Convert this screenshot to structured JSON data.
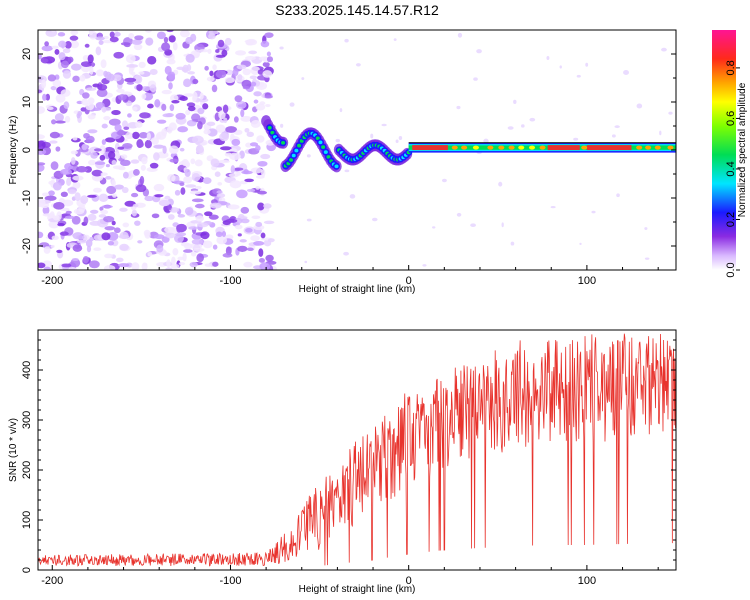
{
  "title": "S233.2025.145.14.57.R12",
  "chart_data": [
    {
      "type": "heatmap",
      "title": "S233.2025.145.14.57.R12",
      "xlabel": "Height of straight line (km)",
      "ylabel": "Frequency (Hz)",
      "xlim": [
        -208,
        150
      ],
      "ylim": [
        -25,
        25
      ],
      "xticks": [
        -200,
        -100,
        0,
        100
      ],
      "yticks": [
        -20,
        -10,
        0,
        10,
        20
      ],
      "colorbar": {
        "label": "Normalized spectral amplitude",
        "range": [
          0.0,
          0.95
        ],
        "ticks": [
          "0.0",
          "0.2",
          "0.4",
          "0.6",
          "0.8"
        ],
        "colormap": "rainbow (purple-blue-cyan-green-yellow-orange-red-pink)"
      },
      "features": [
        {
          "region": "x < -75 km",
          "description": "noise, low amplitude speckle across all frequencies",
          "amplitude_range": [
            0.0,
            0.1
          ]
        },
        {
          "region": "-75 to 0 km",
          "description": "band near 0 Hz with wander up to ~5 Hz",
          "amplitude_range": [
            0.1,
            0.5
          ]
        },
        {
          "region": "0 to 150 km",
          "description": "narrow strong band at ~0.5 Hz",
          "amplitude_range": [
            0.3,
            0.95
          ]
        }
      ],
      "colors": {
        "noise": "#7b2be0",
        "band_core": "#e8332d",
        "band_edge": "#1a1aff"
      }
    },
    {
      "type": "line",
      "xlabel": "Height of straight line (km)",
      "ylabel": "SNR (10 * v/v)",
      "xlim": [
        -208,
        150
      ],
      "ylim": [
        0,
        480
      ],
      "xticks": [
        -200,
        -100,
        0,
        100
      ],
      "yticks": [
        0,
        100,
        200,
        300,
        400
      ],
      "color": "#e8332d",
      "envelope": {
        "x": [
          -208,
          -80,
          -65,
          -60,
          -40,
          -20,
          0,
          20,
          40,
          60,
          80,
          100,
          120,
          150
        ],
        "y_min": [
          8,
          8,
          15,
          20,
          60,
          100,
          160,
          200,
          220,
          240,
          250,
          250,
          260,
          270
        ],
        "y_max": [
          30,
          35,
          90,
          130,
          220,
          300,
          360,
          400,
          430,
          460,
          460,
          470,
          480,
          470
        ]
      }
    }
  ]
}
